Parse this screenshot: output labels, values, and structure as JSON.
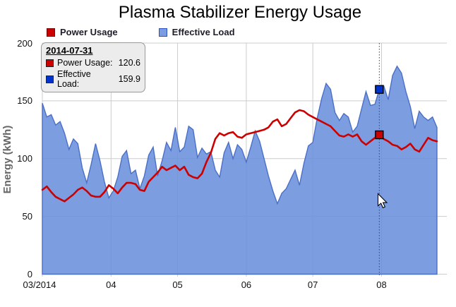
{
  "title": "Plasma Stabilizer Energy Usage",
  "legend": {
    "items": [
      {
        "label": "Power Usage",
        "swatch_fill": "#cc0000",
        "swatch_border": "#7a0000"
      },
      {
        "label": "Effective Load",
        "swatch_fill": "#7b9ce0",
        "swatch_border": "#2a52be"
      }
    ]
  },
  "y_axis": {
    "title": "Energy (kWh)",
    "tick_labels": [
      "200",
      "150",
      "100",
      "50",
      "0"
    ],
    "tick_values": [
      200,
      150,
      100,
      50,
      0
    ]
  },
  "x_axis": {
    "tick_labels": [
      "03/2014",
      "04",
      "05",
      "06",
      "07",
      "08"
    ]
  },
  "tooltip": {
    "date": "2014-07-31",
    "rows": [
      {
        "label": "Power Usage:",
        "value": "120.6",
        "swatch": "#cc0000"
      },
      {
        "label": "Effective Load:",
        "value": "159.9",
        "swatch": "#0033cc"
      }
    ]
  },
  "chart_data": {
    "type": "area",
    "title": "Plasma Stabilizer Energy Usage",
    "ylabel": "Energy (kWh)",
    "ylim": [
      0,
      200
    ],
    "grid": true,
    "legend_position": "top",
    "x_unit": "days since 2014-03-01",
    "x_step_days": 2,
    "x_month_ticks": {
      "labels": [
        "03/2014",
        "04",
        "05",
        "06",
        "07",
        "08"
      ],
      "day_offsets": [
        0,
        31,
        61,
        92,
        122,
        153
      ]
    },
    "series": [
      {
        "name": "Power Usage",
        "type": "line",
        "color": "#cc0000",
        "values": [
          73,
          76,
          71,
          67,
          65,
          63,
          66,
          69,
          73,
          75,
          72,
          68,
          67,
          67,
          71,
          77,
          74,
          70,
          75,
          79,
          79,
          78,
          73,
          72,
          80,
          84,
          88,
          93,
          90,
          92,
          94,
          90,
          93,
          86,
          84,
          83,
          87,
          97,
          105,
          117,
          122,
          120,
          122,
          123,
          119,
          118,
          121,
          122,
          123,
          124,
          125,
          127,
          132,
          134,
          128,
          130,
          135,
          140,
          142,
          141,
          138,
          136,
          134,
          132,
          130,
          128,
          124,
          120,
          119,
          121,
          119,
          121,
          115,
          112,
          115,
          118,
          120.6,
          117,
          115,
          112,
          111,
          108,
          110,
          113,
          108,
          106,
          112,
          118,
          116,
          115
        ]
      },
      {
        "name": "Effective Load",
        "type": "area",
        "color": "#7b9ce0",
        "border_color": "#4a6fc6",
        "values": [
          148,
          136,
          138,
          129,
          132,
          122,
          108,
          117,
          113,
          92,
          79,
          95,
          113,
          98,
          80,
          66,
          72,
          84,
          102,
          107,
          87,
          90,
          74,
          85,
          103,
          110,
          85,
          98,
          114,
          107,
          127,
          106,
          110,
          128,
          125,
          101,
          109,
          104,
          106,
          90,
          84,
          105,
          114,
          100,
          112,
          108,
          97,
          110,
          124,
          115,
          100,
          85,
          72,
          61,
          70,
          74,
          82,
          90,
          77,
          96,
          111,
          114,
          135,
          152,
          165,
          160,
          140,
          133,
          139,
          136,
          123,
          128,
          143,
          158,
          146,
          147,
          159.9,
          163,
          151,
          172,
          180,
          174,
          158,
          145,
          126,
          141,
          136,
          133,
          136,
          127
        ]
      }
    ],
    "hover": {
      "date": "2014-07-31",
      "day_offset": 152,
      "values": {
        "Power Usage": 120.6,
        "Effective Load": 159.9
      }
    }
  }
}
